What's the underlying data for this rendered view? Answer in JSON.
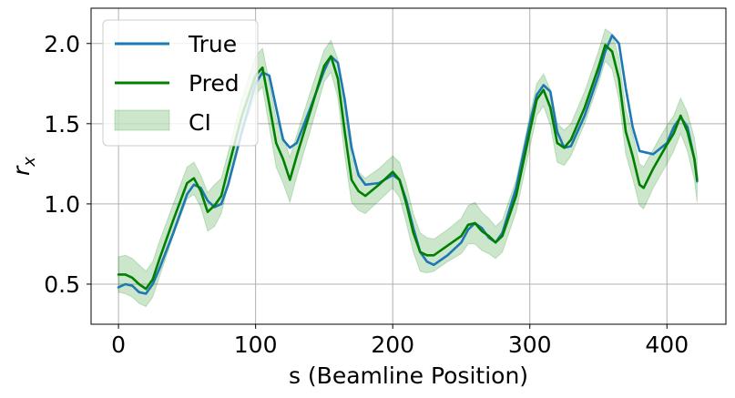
{
  "chart_data": {
    "type": "line",
    "xlabel": "s (Beamline Position)",
    "ylabel_base": "r",
    "ylabel_sub": "x",
    "xlim": [
      -20,
      443
    ],
    "ylim": [
      0.25,
      2.22
    ],
    "xticks": [
      0,
      100,
      200,
      300,
      400
    ],
    "xtick_labels": [
      "0",
      "100",
      "200",
      "300",
      "400"
    ],
    "yticks": [
      0.5,
      1.0,
      1.5,
      2.0
    ],
    "ytick_labels": [
      "0.5",
      "1.0",
      "1.5",
      "2.0"
    ],
    "grid": true,
    "legend_position": "top-left",
    "legend": [
      "True",
      "Pred",
      "CI"
    ],
    "series": [
      {
        "name": "True",
        "color": "#1f77b4",
        "x": [
          0,
          5,
          10,
          15,
          20,
          25,
          30,
          40,
          50,
          55,
          60,
          65,
          70,
          75,
          80,
          90,
          100,
          105,
          110,
          115,
          120,
          125,
          130,
          140,
          150,
          155,
          160,
          165,
          170,
          175,
          180,
          190,
          200,
          205,
          210,
          215,
          220,
          225,
          230,
          240,
          250,
          255,
          260,
          265,
          270,
          275,
          280,
          290,
          300,
          305,
          310,
          315,
          320,
          325,
          330,
          340,
          350,
          355,
          360,
          365,
          370,
          375,
          380,
          390,
          400,
          405,
          410,
          415,
          420,
          422
        ],
        "values": [
          0.48,
          0.5,
          0.49,
          0.45,
          0.44,
          0.5,
          0.6,
          0.82,
          1.06,
          1.12,
          1.1,
          1.02,
          0.98,
          1.0,
          1.12,
          1.45,
          1.75,
          1.82,
          1.8,
          1.6,
          1.4,
          1.35,
          1.38,
          1.6,
          1.83,
          1.92,
          1.88,
          1.65,
          1.35,
          1.18,
          1.12,
          1.13,
          1.18,
          1.15,
          1.02,
          0.85,
          0.7,
          0.64,
          0.62,
          0.68,
          0.76,
          0.84,
          0.88,
          0.85,
          0.79,
          0.76,
          0.82,
          1.1,
          1.5,
          1.68,
          1.74,
          1.7,
          1.45,
          1.35,
          1.36,
          1.55,
          1.8,
          1.95,
          2.05,
          2.0,
          1.72,
          1.48,
          1.33,
          1.31,
          1.38,
          1.48,
          1.54,
          1.48,
          1.28,
          1.14
        ]
      },
      {
        "name": "Pred",
        "color": "#008000",
        "x": [
          0,
          5,
          10,
          15,
          20,
          25,
          30,
          40,
          50,
          55,
          60,
          65,
          70,
          75,
          80,
          90,
          100,
          105,
          110,
          115,
          120,
          125,
          130,
          140,
          150,
          155,
          160,
          165,
          170,
          175,
          180,
          190,
          200,
          205,
          210,
          215,
          220,
          225,
          230,
          240,
          250,
          255,
          260,
          265,
          270,
          275,
          280,
          290,
          300,
          305,
          310,
          315,
          320,
          325,
          330,
          340,
          350,
          355,
          360,
          365,
          370,
          375,
          380,
          383,
          390,
          400,
          405,
          410,
          415,
          420,
          422
        ],
        "values": [
          0.56,
          0.56,
          0.54,
          0.5,
          0.47,
          0.53,
          0.66,
          0.9,
          1.13,
          1.16,
          1.08,
          0.95,
          0.99,
          1.05,
          1.22,
          1.55,
          1.8,
          1.85,
          1.62,
          1.38,
          1.28,
          1.15,
          1.3,
          1.58,
          1.86,
          1.92,
          1.78,
          1.45,
          1.15,
          1.08,
          1.05,
          1.12,
          1.2,
          1.15,
          1.0,
          0.82,
          0.7,
          0.68,
          0.68,
          0.74,
          0.8,
          0.87,
          0.88,
          0.83,
          0.8,
          0.76,
          0.8,
          1.05,
          1.45,
          1.65,
          1.71,
          1.6,
          1.38,
          1.35,
          1.4,
          1.6,
          1.85,
          1.99,
          1.95,
          1.78,
          1.45,
          1.3,
          1.12,
          1.1,
          1.22,
          1.37,
          1.44,
          1.55,
          1.45,
          1.28,
          1.15
        ]
      }
    ],
    "ci": {
      "name": "CI",
      "color": "#008000",
      "half_width": [
        0.11,
        0.12,
        0.12,
        0.12,
        0.11,
        0.11,
        0.11,
        0.1,
        0.1,
        0.1,
        0.1,
        0.12,
        0.13,
        0.11,
        0.1,
        0.11,
        0.12,
        0.12,
        0.14,
        0.15,
        0.15,
        0.14,
        0.13,
        0.12,
        0.1,
        0.1,
        0.12,
        0.15,
        0.14,
        0.12,
        0.11,
        0.1,
        0.1,
        0.11,
        0.12,
        0.12,
        0.12,
        0.11,
        0.1,
        0.1,
        0.11,
        0.12,
        0.13,
        0.12,
        0.11,
        0.1,
        0.1,
        0.1,
        0.1,
        0.1,
        0.1,
        0.11,
        0.12,
        0.11,
        0.1,
        0.1,
        0.1,
        0.1,
        0.11,
        0.13,
        0.14,
        0.14,
        0.13,
        0.13,
        0.12,
        0.12,
        0.11,
        0.11,
        0.12,
        0.13,
        0.14
      ]
    }
  }
}
